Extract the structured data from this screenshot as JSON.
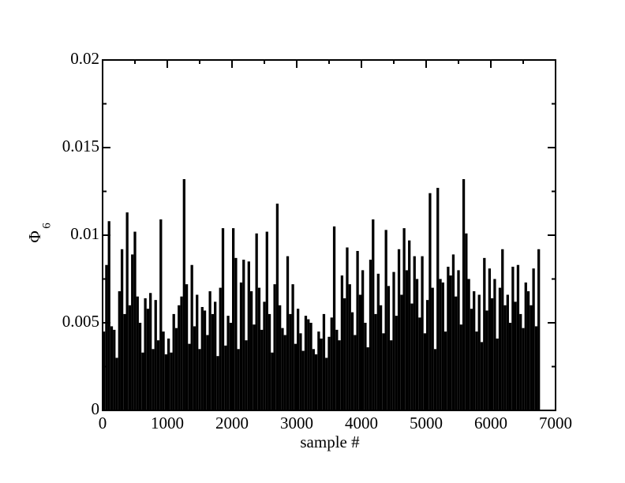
{
  "chart_data": {
    "type": "impulse",
    "xlabel": "sample #",
    "ylabel": {
      "symbol": "Φ",
      "subscript": "6"
    },
    "color": "#000000",
    "xlim": [
      0,
      7000
    ],
    "xticks": [
      0,
      1000,
      2000,
      3000,
      4000,
      5000,
      6000,
      7000
    ],
    "xminorticks": [
      500,
      1500,
      2500,
      3500,
      4500,
      5500,
      6500
    ],
    "ylim": [
      0,
      0.02
    ],
    "yticks": [
      0,
      0.005,
      0.01,
      0.015,
      0.02
    ],
    "yminorticks": [
      0.0025,
      0.0075,
      0.0125,
      0.0175
    ],
    "x": [
      0,
      40,
      80,
      120,
      160,
      200,
      240,
      280,
      320,
      360,
      400,
      440,
      480,
      520,
      560,
      600,
      640,
      680,
      720,
      760,
      800,
      840,
      880,
      920,
      960,
      1000,
      1040,
      1080,
      1120,
      1160,
      1200,
      1240,
      1280,
      1320,
      1360,
      1400,
      1440,
      1480,
      1520,
      1560,
      1600,
      1640,
      1680,
      1720,
      1760,
      1800,
      1840,
      1880,
      1920,
      1960,
      2000,
      2040,
      2080,
      2120,
      2160,
      2200,
      2240,
      2280,
      2320,
      2360,
      2400,
      2440,
      2480,
      2520,
      2560,
      2600,
      2640,
      2680,
      2720,
      2760,
      2800,
      2840,
      2880,
      2920,
      2960,
      3000,
      3040,
      3080,
      3120,
      3160,
      3200,
      3240,
      3280,
      3320,
      3360,
      3400,
      3440,
      3480,
      3520,
      3560,
      3600,
      3640,
      3680,
      3720,
      3760,
      3800,
      3840,
      3880,
      3920,
      3960,
      4000,
      4040,
      4080,
      4120,
      4160,
      4200,
      4240,
      4280,
      4320,
      4360,
      4400,
      4440,
      4480,
      4520,
      4560,
      4600,
      4640,
      4680,
      4720,
      4760,
      4800,
      4840,
      4880,
      4920,
      4960,
      5000,
      5040,
      5080,
      5120,
      5160,
      5200,
      5240,
      5280,
      5320,
      5360,
      5400,
      5440,
      5480,
      5520,
      5560,
      5600,
      5640,
      5680,
      5720,
      5760,
      5800,
      5840,
      5880,
      5920,
      5960,
      6000,
      6040,
      6080,
      6120,
      6160,
      6200,
      6240,
      6280,
      6320,
      6360,
      6400,
      6440,
      6480,
      6520,
      6560,
      6600,
      6640,
      6680,
      6720
    ],
    "values": [
      0.0045,
      0.0083,
      0.0108,
      0.0048,
      0.0046,
      0.003,
      0.0068,
      0.0092,
      0.0055,
      0.0113,
      0.006,
      0.0089,
      0.0102,
      0.0065,
      0.005,
      0.0033,
      0.0064,
      0.0058,
      0.0067,
      0.0035,
      0.0063,
      0.004,
      0.0109,
      0.0045,
      0.0032,
      0.0041,
      0.0033,
      0.0055,
      0.0047,
      0.006,
      0.0065,
      0.0132,
      0.0072,
      0.0038,
      0.0083,
      0.0048,
      0.0066,
      0.0035,
      0.0059,
      0.0057,
      0.0043,
      0.0068,
      0.0055,
      0.0062,
      0.0031,
      0.007,
      0.0104,
      0.0037,
      0.0054,
      0.005,
      0.0104,
      0.0087,
      0.0035,
      0.0073,
      0.0086,
      0.004,
      0.0085,
      0.0068,
      0.0049,
      0.0101,
      0.007,
      0.0046,
      0.0062,
      0.0102,
      0.0055,
      0.0033,
      0.0072,
      0.0118,
      0.006,
      0.0047,
      0.0043,
      0.0088,
      0.0055,
      0.0072,
      0.0038,
      0.0058,
      0.0044,
      0.0034,
      0.0054,
      0.0052,
      0.005,
      0.0035,
      0.0032,
      0.0045,
      0.0041,
      0.0055,
      0.003,
      0.0042,
      0.0053,
      0.0105,
      0.0046,
      0.004,
      0.0077,
      0.0064,
      0.0093,
      0.0072,
      0.0056,
      0.0043,
      0.0091,
      0.0066,
      0.008,
      0.005,
      0.0036,
      0.0086,
      0.0109,
      0.0055,
      0.0078,
      0.006,
      0.0044,
      0.0103,
      0.0071,
      0.004,
      0.0079,
      0.0054,
      0.0092,
      0.0066,
      0.0104,
      0.008,
      0.0097,
      0.0061,
      0.0088,
      0.0075,
      0.0053,
      0.0088,
      0.0044,
      0.0063,
      0.0124,
      0.007,
      0.0035,
      0.0127,
      0.0075,
      0.0073,
      0.0045,
      0.0082,
      0.0077,
      0.0089,
      0.0065,
      0.008,
      0.0049,
      0.0132,
      0.0101,
      0.0075,
      0.0058,
      0.0068,
      0.0045,
      0.0066,
      0.0039,
      0.0087,
      0.0057,
      0.0081,
      0.0064,
      0.0075,
      0.0041,
      0.007,
      0.0092,
      0.006,
      0.0066,
      0.005,
      0.0082,
      0.0062,
      0.0083,
      0.0055,
      0.0047,
      0.0073,
      0.0068,
      0.006,
      0.0081,
      0.0048,
      0.0092
    ]
  }
}
